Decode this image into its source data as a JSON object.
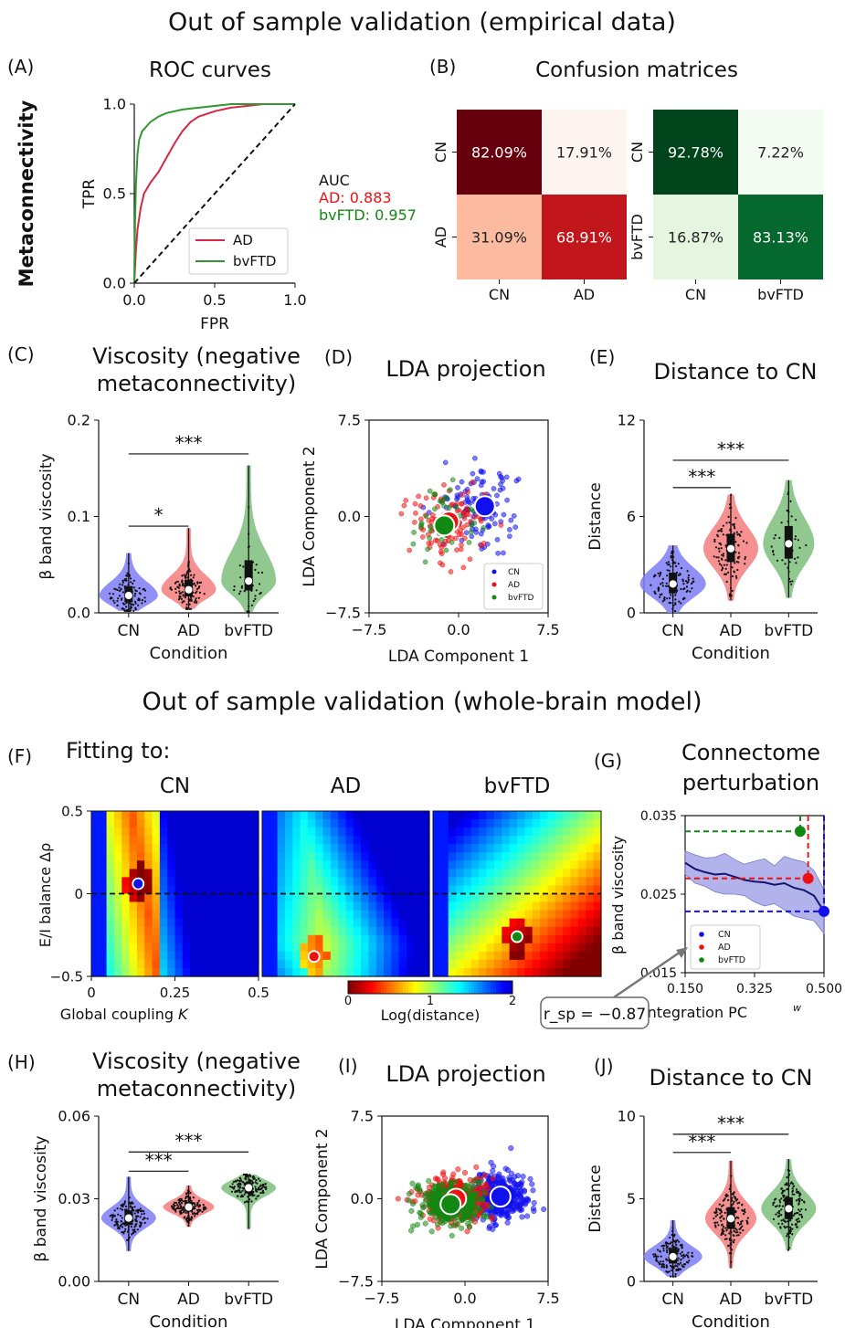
{
  "figure": {
    "section_titles": [
      "Out of sample validation (empirical data)",
      "Out of sample validation (whole-brain model)"
    ],
    "row_label": "Metaconnectivity",
    "panel_letters": [
      "(A)",
      "(B)",
      "(C)",
      "(D)",
      "(E)",
      "(F)",
      "(G)",
      "(H)",
      "(I)",
      "(J)"
    ]
  },
  "colors": {
    "CN": "#1010ee",
    "AD": "#ee1111",
    "bvFTD": "#118811",
    "roc_AD": "#d62747",
    "roc_bvFTD": "#2e9a2e"
  },
  "chart_data": [
    {
      "id": "A",
      "type": "line",
      "title": "ROC curves",
      "xlabel": "FPR",
      "ylabel": "TPR",
      "xlim": [
        0,
        1
      ],
      "ylim": [
        0,
        1
      ],
      "xticks": [
        "0.0",
        "0.5",
        "1.0"
      ],
      "yticks": [
        "0.0",
        "0.5",
        "1.0"
      ],
      "legend": "lower-right",
      "series": [
        {
          "name": "AD",
          "x": [
            0,
            0.01,
            0.02,
            0.04,
            0.06,
            0.1,
            0.15,
            0.2,
            0.25,
            0.3,
            0.35,
            0.4,
            0.5,
            0.6,
            0.7,
            0.8,
            0.9,
            1.0
          ],
          "y": [
            0,
            0.18,
            0.3,
            0.42,
            0.5,
            0.56,
            0.62,
            0.7,
            0.78,
            0.85,
            0.9,
            0.93,
            0.96,
            0.98,
            0.99,
            1.0,
            1.0,
            1.0
          ]
        },
        {
          "name": "bvFTD",
          "x": [
            0,
            0.005,
            0.01,
            0.02,
            0.03,
            0.05,
            0.08,
            0.1,
            0.15,
            0.2,
            0.3,
            0.4,
            0.5,
            0.6,
            0.8,
            1.0
          ],
          "y": [
            0,
            0.35,
            0.55,
            0.72,
            0.8,
            0.85,
            0.88,
            0.9,
            0.93,
            0.95,
            0.97,
            0.98,
            0.99,
            1.0,
            1.0,
            1.0
          ]
        },
        {
          "x": [
            0,
            1
          ],
          "y": [
            0,
            1
          ]
        }
      ],
      "annotations": {
        "auc_label": "AUC",
        "ad_auc": "AD: 0.883",
        "bvftd_auc": "bvFTD: 0.957"
      }
    },
    {
      "id": "B",
      "type": "heatmap",
      "title": "Confusion matrices",
      "matrices": [
        {
          "rows": [
            "CN",
            "AD"
          ],
          "cols": [
            "CN",
            "AD"
          ],
          "cells": [
            [
              "82.09%",
              "17.91%"
            ],
            [
              "31.09%",
              "68.91%"
            ]
          ],
          "values": [
            [
              82.09,
              17.91
            ],
            [
              31.09,
              68.91
            ]
          ],
          "colors": [
            [
              "#67000d",
              "#fff5f0"
            ],
            [
              "#fcbba1",
              "#c0161c"
            ]
          ]
        },
        {
          "rows": [
            "CN",
            "bvFTD"
          ],
          "cols": [
            "CN",
            "bvFTD"
          ],
          "cells": [
            [
              "92.78%",
              "7.22%"
            ],
            [
              "16.87%",
              "83.13%"
            ]
          ],
          "values": [
            [
              92.78,
              7.22
            ],
            [
              16.87,
              83.13
            ]
          ],
          "colors": [
            [
              "#00441b",
              "#f4fbf2"
            ],
            [
              "#e5f5e0",
              "#05692f"
            ]
          ]
        }
      ]
    },
    {
      "id": "C",
      "type": "violin",
      "title": [
        "Viscosity (negative",
        "metaconnectivity)"
      ],
      "xlabel": "Condition",
      "ylabel": "β band viscosity",
      "ylim": [
        0,
        0.2
      ],
      "yticks": [
        "0.0",
        "0.1",
        "0.2"
      ],
      "categories": [
        "CN",
        "AD",
        "bvFTD"
      ],
      "medians": [
        0.018,
        0.024,
        0.033
      ],
      "significance": [
        {
          "from": 0,
          "to": 1,
          "label": "*",
          "y": 0.09
        },
        {
          "from": 0,
          "to": 2,
          "label": "***",
          "y": 0.165
        }
      ]
    },
    {
      "id": "D",
      "type": "scatter",
      "title": "LDA projection",
      "xlabel": "LDA Component 1",
      "ylabel": "LDA Component 2",
      "xlim": [
        -7.5,
        7.5
      ],
      "ylim": [
        -7.5,
        7.5
      ],
      "xticks": [
        "−7.5",
        "0.0",
        "7.5"
      ],
      "yticks": [
        "−7.5",
        "0.0",
        "7.5"
      ],
      "legend": "lower-right",
      "series": [
        {
          "name": "CN",
          "centroid": [
            2.2,
            0.8
          ]
        },
        {
          "name": "AD",
          "centroid": [
            -0.8,
            -0.4
          ]
        },
        {
          "name": "bvFTD",
          "centroid": [
            -1.2,
            -0.7
          ]
        }
      ]
    },
    {
      "id": "E",
      "type": "violin",
      "title": "Distance to CN",
      "xlabel": "Condition",
      "ylabel": "Distance",
      "ylim": [
        0,
        12
      ],
      "yticks": [
        "0",
        "6",
        "12"
      ],
      "categories": [
        "CN",
        "AD",
        "bvFTD"
      ],
      "medians": [
        1.8,
        4.0,
        4.3
      ],
      "significance": [
        {
          "from": 0,
          "to": 1,
          "label": "***",
          "y": 7.8
        },
        {
          "from": 0,
          "to": 2,
          "label": "***",
          "y": 9.5
        }
      ]
    },
    {
      "id": "F",
      "type": "heatmap",
      "title": "Fitting to:",
      "panels": [
        "CN",
        "AD",
        "bvFTD"
      ],
      "xlabel": "Global coupling K",
      "ylabel": "E/I balance Δρ",
      "xlim": [
        0,
        0.5
      ],
      "ylim": [
        -0.5,
        0.5
      ],
      "xticks": [
        "0",
        "0.25",
        "0.5"
      ],
      "yticks": [
        "−0.5",
        "0",
        "0.5"
      ],
      "colorbar": {
        "label": "Log(distance)",
        "ticks": [
          "0",
          "1",
          "2"
        ],
        "range": [
          0,
          2
        ]
      },
      "best_fit": [
        {
          "K": 0.14,
          "rho": 0.06
        },
        {
          "K": 0.155,
          "rho": -0.38
        },
        {
          "K": 0.25,
          "rho": -0.26
        }
      ]
    },
    {
      "id": "G",
      "type": "line",
      "title": [
        "Connectome",
        "perturbation"
      ],
      "xlabel": "Integration PC",
      "xlabel_sup": "w",
      "ylabel": "β band viscosity",
      "xlim": [
        0.15,
        0.5
      ],
      "ylim": [
        0.015,
        0.035
      ],
      "xticks": [
        "0.150",
        "0.325",
        "0.500"
      ],
      "yticks": [
        "0.015",
        "0.025",
        "0.035"
      ],
      "legend": "lower-left",
      "series": [
        {
          "name": "model",
          "x": [
            0.15,
            0.175,
            0.2,
            0.225,
            0.25,
            0.275,
            0.3,
            0.325,
            0.35,
            0.375,
            0.4,
            0.425,
            0.45,
            0.475,
            0.5
          ],
          "y": [
            0.029,
            0.0282,
            0.0278,
            0.0275,
            0.0276,
            0.0272,
            0.0268,
            0.0266,
            0.0265,
            0.0262,
            0.0264,
            0.0258,
            0.0255,
            0.0248,
            0.0228
          ],
          "band": [
            0.0015,
            0.0018,
            0.0018,
            0.0022,
            0.0026,
            0.0022,
            0.002,
            0.0026,
            0.003,
            0.0024,
            0.0034,
            0.0036,
            0.0036,
            0.0032,
            0.0028
          ]
        }
      ],
      "points": [
        {
          "name": "CN",
          "x": 0.5,
          "y": 0.0228
        },
        {
          "name": "AD",
          "x": 0.46,
          "y": 0.027
        },
        {
          "name": "bvFTD",
          "x": 0.44,
          "y": 0.033
        }
      ],
      "annotation": "r_sp = −0.87"
    },
    {
      "id": "H",
      "type": "violin",
      "title": [
        "Viscosity (negative",
        "metaconnectivity)"
      ],
      "xlabel": "Condition",
      "ylabel": "β band viscosity",
      "ylim": [
        0,
        0.06
      ],
      "yticks": [
        "0.00",
        "0.03",
        "0.06"
      ],
      "categories": [
        "CN",
        "AD",
        "bvFTD"
      ],
      "medians": [
        0.023,
        0.027,
        0.034
      ],
      "significance": [
        {
          "from": 0,
          "to": 1,
          "label": "***",
          "y": 0.04
        },
        {
          "from": 0,
          "to": 2,
          "label": "***",
          "y": 0.047
        }
      ]
    },
    {
      "id": "I",
      "type": "scatter",
      "title": "LDA projection",
      "xlabel": "LDA Component 1",
      "ylabel": "LDA Component 2",
      "xlim": [
        -7.5,
        7.5
      ],
      "ylim": [
        -7.5,
        7.5
      ],
      "xticks": [
        "−7.5",
        "0.0",
        "7.5"
      ],
      "yticks": [
        "−7.5",
        "0.0",
        "7.5"
      ],
      "series": [
        {
          "name": "CN",
          "centroid": [
            3.2,
            0.2
          ]
        },
        {
          "name": "AD",
          "centroid": [
            -0.8,
            0.0
          ]
        },
        {
          "name": "bvFTD",
          "centroid": [
            -1.3,
            -0.5
          ]
        }
      ]
    },
    {
      "id": "J",
      "type": "violin",
      "title": "Distance to CN",
      "xlabel": "Condition",
      "ylabel": "Distance",
      "ylim": [
        0,
        10
      ],
      "yticks": [
        "0",
        "5",
        "10"
      ],
      "categories": [
        "CN",
        "AD",
        "bvFTD"
      ],
      "medians": [
        1.5,
        3.8,
        4.4
      ],
      "significance": [
        {
          "from": 0,
          "to": 1,
          "label": "***",
          "y": 7.8
        },
        {
          "from": 0,
          "to": 2,
          "label": "***",
          "y": 8.9
        }
      ]
    }
  ]
}
